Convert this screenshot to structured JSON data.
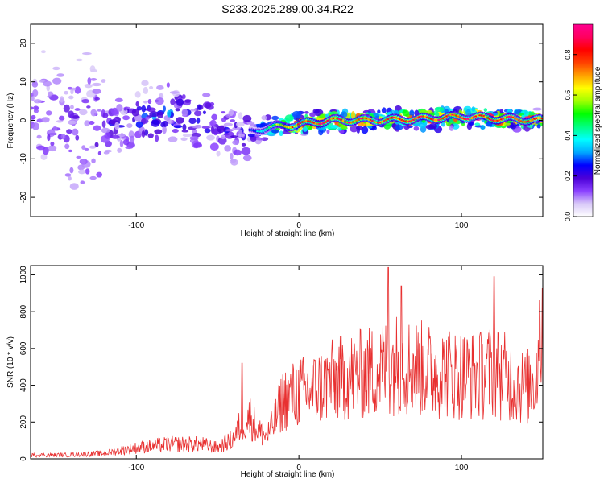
{
  "title": "S233.2025.289.00.34.R22",
  "chart_data": [
    {
      "type": "heatmap",
      "name": "spectrogram",
      "xlabel": "Height of straight line (km)",
      "ylabel": "Frequency (Hz)",
      "xlim": [
        -165,
        150
      ],
      "ylim": [
        -25,
        25
      ],
      "xticks": [
        -100,
        0,
        100
      ],
      "yticks": [
        -20,
        -10,
        0,
        10,
        20
      ],
      "colorbar": {
        "label": "Normalized spectral amplitude",
        "ticks": [
          0.0,
          0.2,
          0.4,
          0.6,
          0.8
        ],
        "range": [
          0,
          0.95
        ],
        "colors": [
          "#ffffff",
          "#d8c8f8",
          "#8a40ff",
          "#4b00d8",
          "#0000ff",
          "#00a8ff",
          "#00ffff",
          "#00ff80",
          "#00ff00",
          "#a0ff00",
          "#ffff00",
          "#ffa000",
          "#ff4000",
          "#ff0000",
          "#ff0060",
          "#ff0090"
        ]
      },
      "trend": {
        "x": [
          -165,
          -120,
          -80,
          -60,
          -40,
          -30,
          -20,
          -10,
          0,
          20,
          50,
          80,
          100,
          120,
          150
        ],
        "center_freq_hz": [
          0,
          -2,
          2,
          0,
          -3,
          -3,
          -2,
          -1.5,
          -1,
          0,
          0,
          0.5,
          1,
          0.5,
          0
        ],
        "peak_amplitude": [
          0.15,
          0.2,
          0.3,
          0.25,
          0.2,
          0.25,
          0.5,
          0.7,
          0.85,
          0.9,
          0.85,
          0.9,
          0.85,
          0.9,
          0.85
        ]
      }
    },
    {
      "type": "line",
      "name": "snr",
      "xlabel": "Height of straight line (km)",
      "ylabel": "SNR (10 * v/v)",
      "xlim": [
        -165,
        150
      ],
      "ylim": [
        0,
        1050
      ],
      "xticks": [
        -100,
        0,
        100
      ],
      "yticks": [
        0,
        200,
        400,
        600,
        800,
        1000
      ],
      "color": "#e83030",
      "envelope": {
        "x": [
          -165,
          -140,
          -120,
          -100,
          -80,
          -60,
          -50,
          -40,
          -35,
          -30,
          -25,
          -20,
          -15,
          -10,
          0,
          10,
          20,
          30,
          40,
          50,
          60,
          70,
          80,
          90,
          100,
          110,
          120,
          130,
          140,
          145,
          150
        ],
        "y": [
          20,
          22,
          30,
          60,
          80,
          80,
          60,
          110,
          200,
          230,
          150,
          120,
          200,
          320,
          360,
          380,
          420,
          450,
          460,
          490,
          520,
          500,
          480,
          470,
          460,
          450,
          480,
          430,
          380,
          450,
          620
        ]
      },
      "peaks": [
        {
          "x": -35,
          "y": 520
        },
        {
          "x": 55,
          "y": 1040
        },
        {
          "x": 63,
          "y": 940
        },
        {
          "x": 120,
          "y": 990
        },
        {
          "x": 148,
          "y": 860
        }
      ]
    }
  ]
}
